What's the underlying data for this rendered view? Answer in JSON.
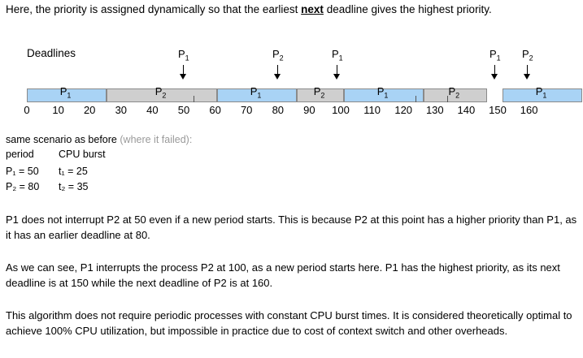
{
  "intro": {
    "before": "Here, the priority is assigned dynamically so that the earliest ",
    "bold": "next",
    "after": " deadline gives the highest priority."
  },
  "diagram": {
    "deadlines_label": "Deadlines",
    "arrows": [
      {
        "proc": "P",
        "sub": "1",
        "time": 50
      },
      {
        "proc": "P",
        "sub": "2",
        "time": 80
      },
      {
        "proc": "P",
        "sub": "1",
        "time": 100
      },
      {
        "proc": "P",
        "sub": "1",
        "time": 150
      },
      {
        "proc": "P",
        "sub": "2",
        "time": 160
      }
    ],
    "segments": [
      {
        "proc": "P",
        "sub": "1",
        "start": 0,
        "end": 25
      },
      {
        "proc": "P",
        "sub": "2",
        "start": 25,
        "end": 60
      },
      {
        "proc": "P",
        "sub": "1",
        "start": 60,
        "end": 85
      },
      {
        "proc": "P",
        "sub": "2",
        "start": 85,
        "end": 100
      },
      {
        "proc": "P",
        "sub": "1",
        "start": 100,
        "end": 125
      },
      {
        "proc": "P",
        "sub": "2",
        "start": 125,
        "end": 145
      },
      {
        "proc": "P",
        "sub": "1",
        "start": 150,
        "end": 175
      }
    ],
    "ticks": [
      "0",
      "10",
      "20",
      "30",
      "40",
      "50",
      "60",
      "70",
      "80",
      "90",
      "100",
      "110",
      "120",
      "130",
      "140",
      "150",
      "160"
    ]
  },
  "scenario": {
    "title": "same scenario as before",
    "title_note": "(where it failed):",
    "col_period": "period",
    "col_burst": "CPU burst",
    "row1_period": "P₁ = 50",
    "row1_burst": "t₁ = 25",
    "row2_period": "P₂ = 80",
    "row2_burst": "t₂ = 35"
  },
  "paragraphs": {
    "p1": "P1 does not interrupt P2 at 50 even if a new period starts. This is because P2 at this point has a higher priority than P1, as it has an earlier deadline at 80.",
    "p2": "As we can see, P1 interrupts the process P2 at 100, as a new period starts here. P1 has the highest priority, as its next deadline is at 150 while the next deadline of P2 is at 160.",
    "p3": "This algorithm does not require periodic processes with constant CPU burst times. It is considered theoretically optimal to achieve 100% CPU utilization, but impossible in practice due to cost of context switch and other overheads."
  }
}
